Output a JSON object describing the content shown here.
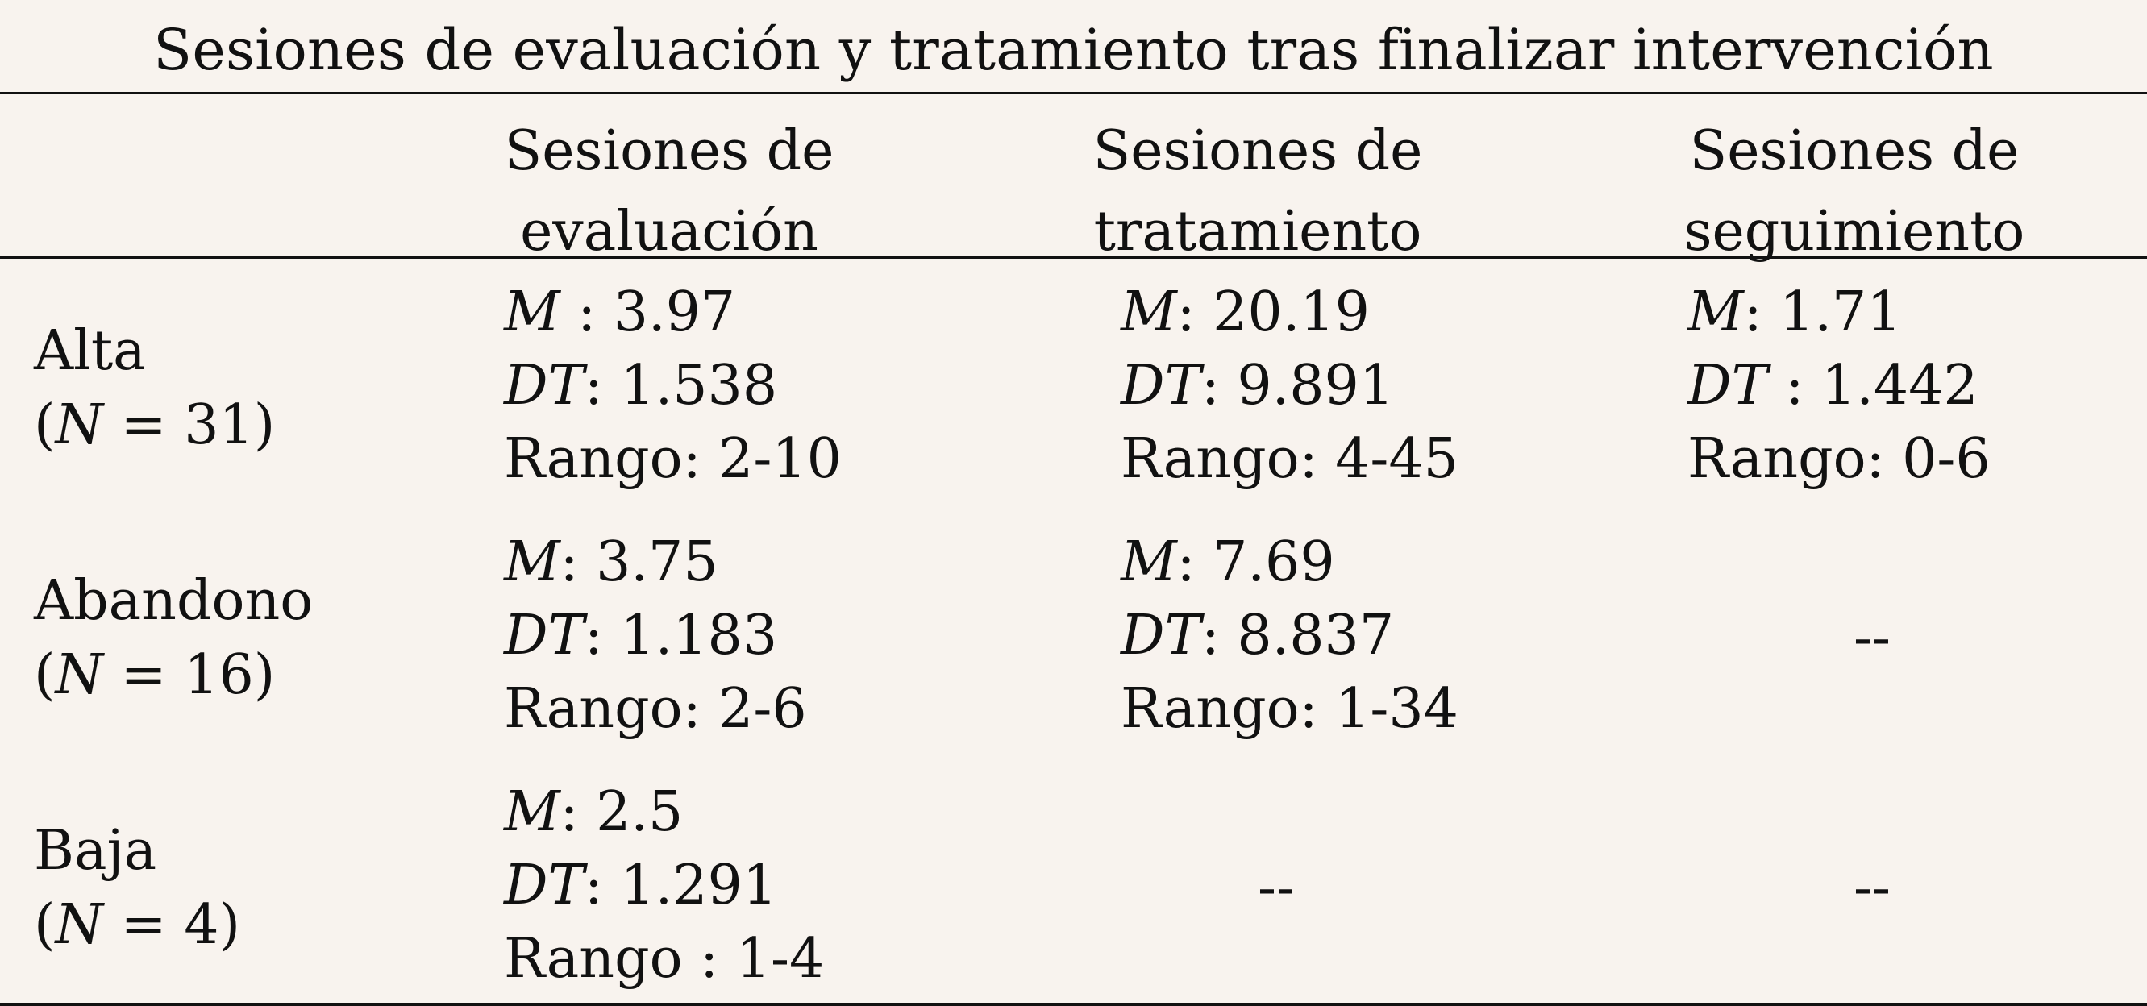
{
  "title": "Sesiones de evaluación y tratamiento tras finalizar intervención",
  "columns": [
    {
      "line1": "Sesiones de",
      "line2": "evaluación"
    },
    {
      "line1": "Sesiones de",
      "line2": "tratamiento"
    },
    {
      "line1": "Sesiones de",
      "line2": "seguimiento"
    }
  ],
  "rows": [
    {
      "label": "Alta",
      "n_open": "(",
      "n_var": "N",
      "n_text": " = 31",
      "n_close": ")",
      "evaluacion": {
        "m_key": "M",
        "m_sep": " : ",
        "m_val": "3.97",
        "dt_key": "DT",
        "dt_sep": ": ",
        "dt_val": "1.538",
        "rango": "Rango: 2-10"
      },
      "tratamiento": {
        "m_key": "M",
        "m_sep": ": ",
        "m_val": "20.19",
        "dt_key": "DT",
        "dt_sep": ": ",
        "dt_val": "9.891",
        "rango": "Rango: 4-45"
      },
      "seguimiento": {
        "m_key": "M",
        "m_sep": ": ",
        "m_val": "1.71",
        "dt_key": "DT",
        "dt_sep": " : ",
        "dt_val": "1.442",
        "rango": "Rango: 0-6"
      }
    },
    {
      "label": "Abandono",
      "n_open": "(",
      "n_var": "N",
      "n_text": " = 16",
      "n_close": ")",
      "evaluacion": {
        "m_key": "M",
        "m_sep": ": ",
        "m_val": "3.75",
        "dt_key": "DT",
        "dt_sep": ": ",
        "dt_val": "1.183",
        "rango": "Rango: 2-6"
      },
      "tratamiento": {
        "m_key": "M",
        "m_sep": ": ",
        "m_val": "7.69",
        "dt_key": "DT",
        "dt_sep": ": ",
        "dt_val": "8.837",
        "rango": "Rango: 1-34"
      },
      "seguimiento": "--"
    },
    {
      "label": "Baja",
      "n_open": "(",
      "n_var": "N",
      "n_text": " = 4",
      "n_close": ")",
      "evaluacion": {
        "m_key": "M",
        "m_sep": ": ",
        "m_val": "2.5",
        "dt_key": "DT",
        "dt_sep": ": ",
        "dt_val": "1.291",
        "rango": "Rango : 1-4"
      },
      "tratamiento": "--",
      "seguimiento": "--"
    }
  ]
}
